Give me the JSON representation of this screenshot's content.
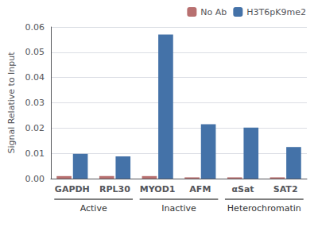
{
  "chart_data": {
    "type": "bar",
    "categories": [
      "GAPDH",
      "RPL30",
      "MYOD1",
      "AFM",
      "αSat",
      "SAT2"
    ],
    "series": [
      {
        "name": "No Ab",
        "color": "#b87070",
        "values": [
          0.001,
          0.001,
          0.001,
          0.0005,
          0.0005,
          0.0005
        ]
      },
      {
        "name": "H3T6pK9me2",
        "color": "#4472a8",
        "values": [
          0.0098,
          0.0088,
          0.057,
          0.0215,
          0.0202,
          0.0125
        ]
      }
    ],
    "groups": [
      {
        "label": "Active",
        "categories": [
          "GAPDH",
          "RPL30"
        ]
      },
      {
        "label": "Inactive",
        "categories": [
          "MYOD1",
          "AFM"
        ]
      },
      {
        "label": "Heterochromatin",
        "categories": [
          "αSat",
          "SAT2"
        ]
      }
    ],
    "ylabel": "Signal Relative to Input",
    "ylim": [
      0,
      0.06
    ],
    "yticks": [
      {
        "value": 0,
        "label": "0.00"
      },
      {
        "value": 0.01,
        "label": "0.01"
      },
      {
        "value": 0.02,
        "label": "0.02"
      },
      {
        "value": 0.03,
        "label": "0.03"
      },
      {
        "value": 0.04,
        "label": "0.04"
      },
      {
        "value": 0.05,
        "label": "0.05"
      },
      {
        "value": 0.06,
        "label": "0.06"
      }
    ],
    "grid": true,
    "legend": "upper right"
  }
}
